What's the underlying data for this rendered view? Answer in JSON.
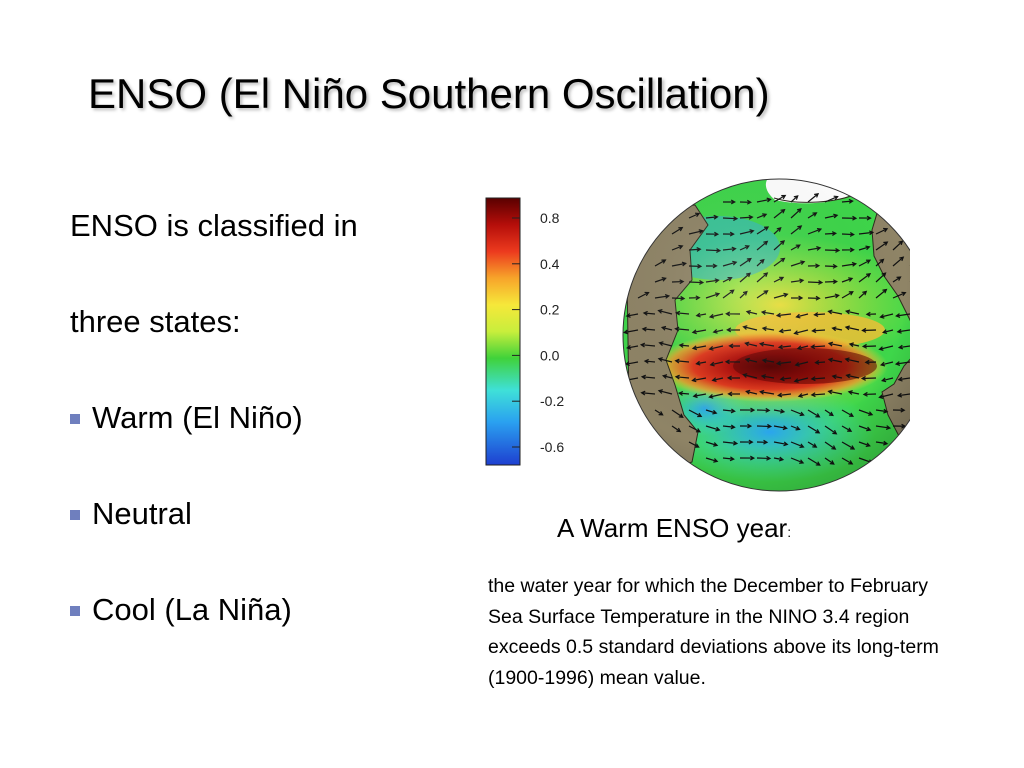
{
  "slide": {
    "title": "ENSO (El Niño Southern Oscillation)",
    "intro_lines": [
      "ENSO is classified in",
      "three states:"
    ],
    "bullets": [
      "Warm (El Niño)",
      "Neutral",
      "Cool (La Niña)"
    ],
    "bullet_color": "#6f7fbe"
  },
  "figure": {
    "caption": "A Warm ENSO year",
    "caption_suffix": ":",
    "description": "the water year for which the December to February Sea Surface Temperature in the NINO 3.4 region exceeds 0.5 standard deviations above its long-term (1900-1996) mean value."
  },
  "chart_data": {
    "type": "heatmap",
    "title": "",
    "colorbar": {
      "ticks": [
        "0.8",
        "0.4",
        "0.2",
        "0.0",
        "-0.2",
        "-0.6"
      ],
      "range": [
        -0.6,
        0.8
      ],
      "colors": [
        "#1e3fd0",
        "#2aa0f0",
        "#3fe0d8",
        "#40d23a",
        "#c8ee3c",
        "#f6e83a",
        "#f7a42a",
        "#ec3a1e",
        "#b50e0a",
        "#5a0000"
      ]
    },
    "map": {
      "projection": "orthographic globe centered on the Pacific Ocean",
      "feature": "warm SST anomaly band along the equatorial Pacific with wind vectors",
      "colors": {
        "land": "#8f8466",
        "ocean_neutral": "#3ed64a",
        "warm_anomaly": "#d21c10",
        "strong_warm_anomaly": "#4a0000",
        "cool_anomaly": "#2aa6f0",
        "sea_ice": "#ffffff"
      }
    }
  }
}
